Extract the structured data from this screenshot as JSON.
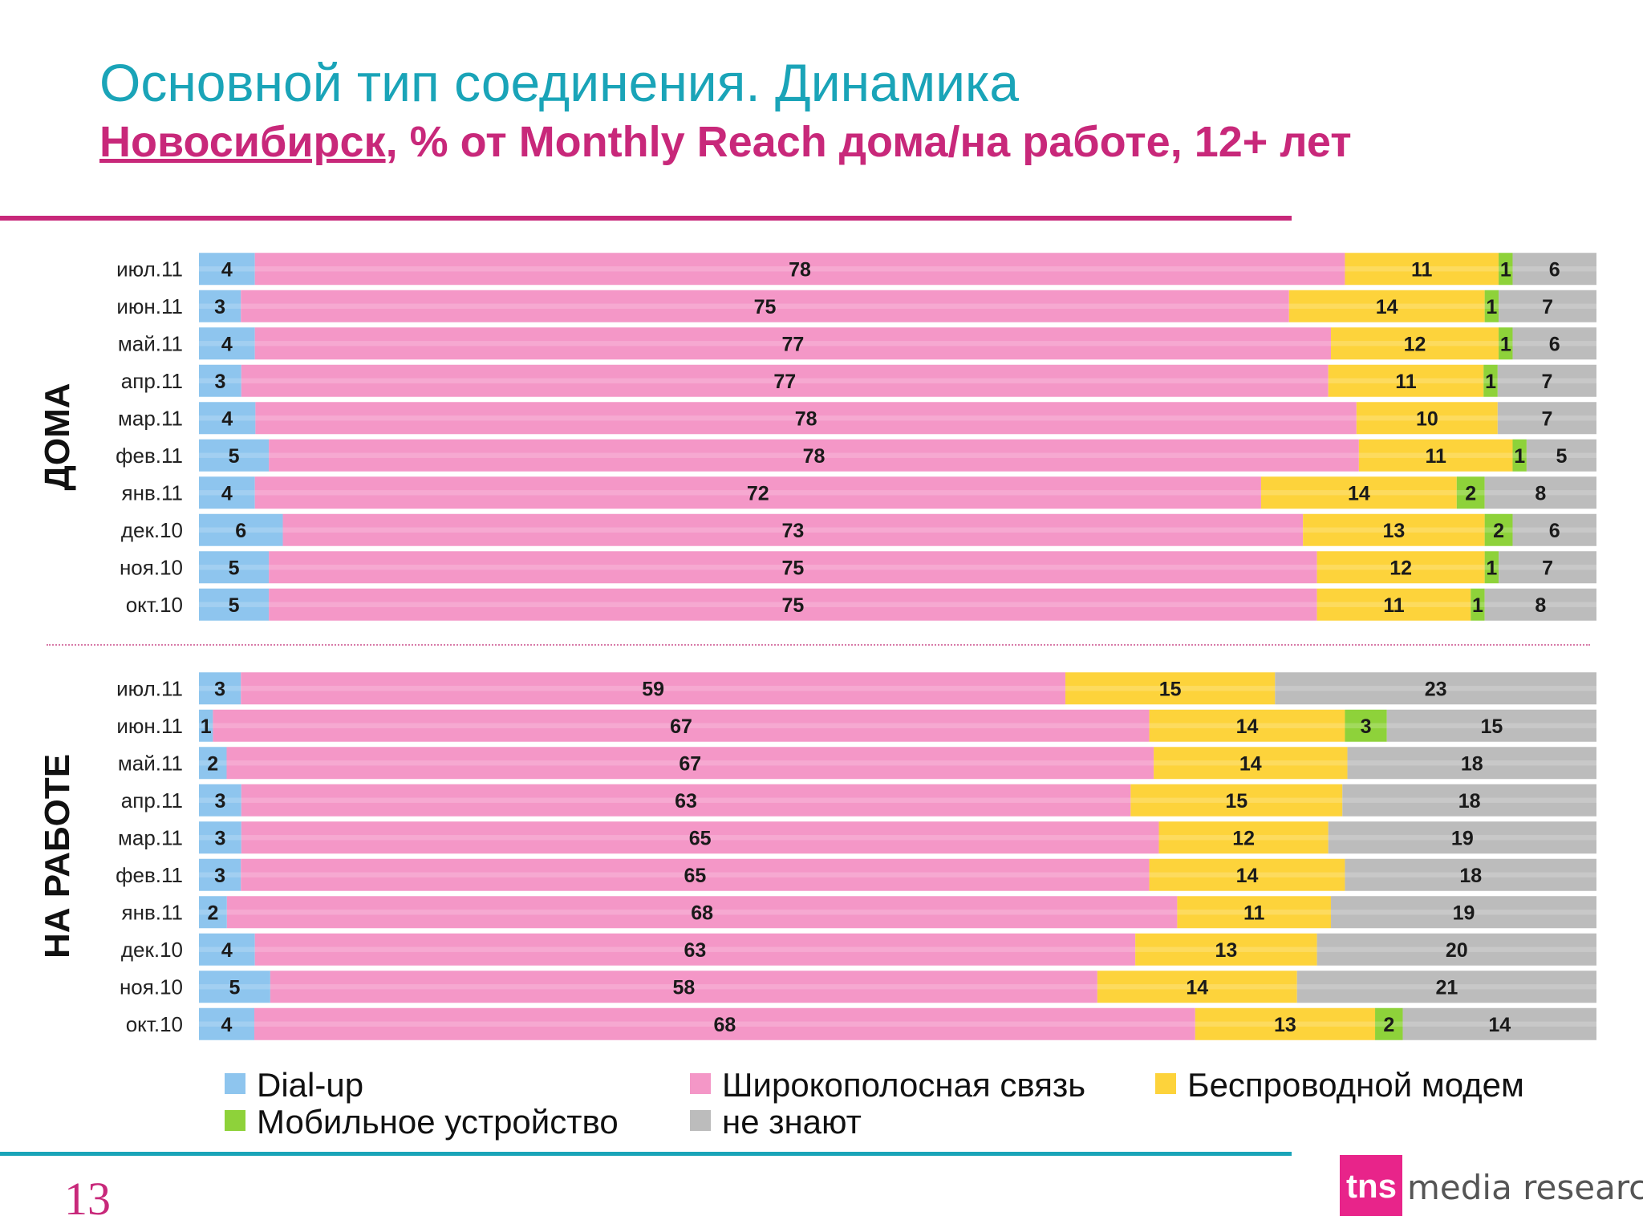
{
  "header": {
    "title": "Основной тип соединения. Динамика",
    "subtitle_city": "Новосибирск",
    "subtitle_rest": ", % от Monthly Reach дома/на работе, 12+ лет"
  },
  "page_number": "13",
  "logo": {
    "badge": "tns",
    "text": "media research"
  },
  "colors": {
    "dialup": "#8ec5ee",
    "broadband": "#f497c7",
    "wireless": "#fdd33b",
    "mobile": "#8ed23a",
    "unknown": "#bcbcbc",
    "title": "#1aa4b8",
    "subtitle": "#c8287a"
  },
  "chart_data": {
    "type": "bar",
    "orientation": "horizontal",
    "stacked": "100%",
    "categories": [
      "июл.11",
      "июн.11",
      "май.11",
      "апр.11",
      "мар.11",
      "фев.11",
      "янв.11",
      "дек.10",
      "ноя.10",
      "окт.10"
    ],
    "legend": [
      "Dial-up",
      "Широкополосная связь",
      "Беспроводной модем",
      "Мобильное устройство",
      "не знают"
    ],
    "panels": [
      {
        "name": "ДОМА",
        "series": [
          {
            "name": "Dial-up",
            "values": [
              4,
              3,
              4,
              3,
              4,
              5,
              4,
              6,
              5,
              5
            ]
          },
          {
            "name": "Широкополосная связь",
            "values": [
              78,
              75,
              77,
              77,
              78,
              78,
              72,
              73,
              75,
              75
            ]
          },
          {
            "name": "Беспроводной модем",
            "values": [
              11,
              14,
              12,
              11,
              10,
              11,
              14,
              13,
              12,
              11
            ]
          },
          {
            "name": "Мобильное устройство",
            "values": [
              1,
              1,
              1,
              1,
              0,
              1,
              2,
              2,
              1,
              1
            ]
          },
          {
            "name": "не знают",
            "values": [
              6,
              7,
              6,
              7,
              7,
              5,
              8,
              6,
              7,
              8
            ]
          }
        ]
      },
      {
        "name": "НА РАБОТЕ",
        "series": [
          {
            "name": "Dial-up",
            "values": [
              3,
              1,
              2,
              3,
              3,
              3,
              2,
              4,
              5,
              4
            ]
          },
          {
            "name": "Широкополосная связь",
            "values": [
              59,
              67,
              67,
              63,
              65,
              65,
              68,
              63,
              58,
              68
            ]
          },
          {
            "name": "Беспроводной модем",
            "values": [
              15,
              14,
              14,
              15,
              12,
              14,
              11,
              13,
              14,
              13
            ]
          },
          {
            "name": "Мобильное устройство",
            "values": [
              0,
              3,
              0,
              0,
              0,
              0,
              0,
              0,
              0,
              2
            ]
          },
          {
            "name": "не знают",
            "values": [
              23,
              15,
              18,
              18,
              19,
              18,
              19,
              20,
              21,
              14
            ]
          }
        ]
      }
    ]
  }
}
